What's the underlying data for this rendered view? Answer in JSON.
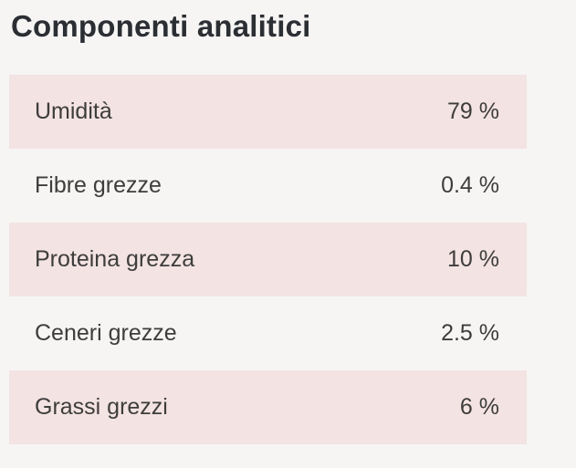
{
  "title": "Componenti analitici",
  "colors": {
    "background": "#f6f5f4",
    "row_alt": "#f3e3e3",
    "title_text": "#2b2e33",
    "row_text": "#3e3d3c"
  },
  "table": {
    "rows": [
      {
        "label": "Umidità",
        "value": "79 %"
      },
      {
        "label": "Fibre grezze",
        "value": "0.4 %"
      },
      {
        "label": "Proteina grezza",
        "value": "10 %"
      },
      {
        "label": "Ceneri grezze",
        "value": "2.5 %"
      },
      {
        "label": "Grassi grezzi",
        "value": "6 %"
      }
    ]
  }
}
